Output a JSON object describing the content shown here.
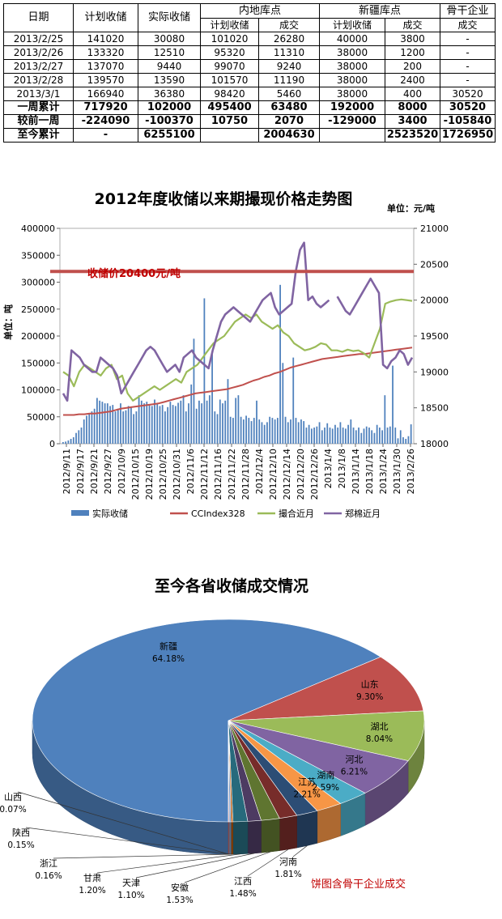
{
  "table": {
    "header": {
      "date": "日期",
      "planned": "计划收储",
      "actual": "实际收储",
      "inland": "内地库点",
      "xinjiang": "新疆库点",
      "backbone": "骨干企业",
      "sub_planned": "计划收储",
      "sub_deal": "成交",
      "sub_planned2": "计划收储",
      "sub_deal2": "成交",
      "sub_deal3": "成交"
    },
    "rows": [
      [
        "2013/2/25",
        "141020",
        "30080",
        "101020",
        "26280",
        "40000",
        "3800",
        "-"
      ],
      [
        "2013/2/26",
        "133320",
        "12510",
        "95320",
        "11310",
        "38000",
        "1200",
        "-"
      ],
      [
        "2013/2/27",
        "137070",
        "9440",
        "99070",
        "9240",
        "38000",
        "200",
        "-"
      ],
      [
        "2013/2/28",
        "139570",
        "13590",
        "101570",
        "11190",
        "38000",
        "2400",
        "-"
      ],
      [
        "2013/3/1",
        "166940",
        "36380",
        "98420",
        "5460",
        "38000",
        "400",
        "30520"
      ]
    ],
    "summary": [
      [
        "一周累计",
        "717920",
        "102000",
        "495400",
        "63480",
        "192000",
        "8000",
        "30520"
      ],
      [
        "较前一周",
        "-224090",
        "-100370",
        "10750",
        "2070",
        "-129000",
        "3400",
        "-105840"
      ],
      [
        "至今累计",
        "-",
        "6255100",
        "",
        "2004630",
        "",
        "2523520",
        "1726950"
      ]
    ]
  },
  "chart_data": [
    {
      "type": "bar+line",
      "title": "2012年度收储以来期撮现价格走势图",
      "right_unit": "单位：元/吨",
      "left_unit": "单位：吨",
      "annotation": "收储价20400元/吨",
      "reference_price": 20400,
      "y_left": {
        "min": 0,
        "max": 400000,
        "ticks": [
          "0",
          "50000",
          "100000",
          "150000",
          "200000",
          "250000",
          "300000",
          "350000",
          "400000"
        ]
      },
      "y_right": {
        "min": 18000,
        "max": 21000,
        "ticks": [
          "18000",
          "18500",
          "19000",
          "19500",
          "20000",
          "20500",
          "21000"
        ]
      },
      "x_ticks": [
        "2012/9/11",
        "2012/9/17",
        "2012/9/21",
        "2012/9/27",
        "2012/10/9",
        "2012/10/15",
        "2012/10/19",
        "2012/10/25",
        "2012/10/31",
        "2012/11/6",
        "2012/11/12",
        "2012/11/16",
        "2012/11/22",
        "2012/11/28",
        "2012/12/4",
        "2012/12/10",
        "2012/12/14",
        "2012/12/20",
        "2012/12/26",
        "2013/1/4",
        "2013/1/8",
        "2013/1/14",
        "2013/1/18",
        "2013/1/24",
        "2013/1/30",
        "2013/2/26"
      ],
      "legend": [
        "实际收储",
        "CCIndex328",
        "撮合近月",
        "郑棉近月"
      ],
      "colors": {
        "bars": "#4f81bd",
        "cc": "#c0504d",
        "match": "#9bbb59",
        "zheng": "#8064a2",
        "ref": "#c0504d"
      },
      "series": {
        "bars": [
          3000,
          4000,
          6000,
          9000,
          12000,
          20000,
          25000,
          30000,
          45000,
          52000,
          55000,
          60000,
          65000,
          85000,
          80000,
          78000,
          75000,
          75000,
          70000,
          72000,
          60000,
          65000,
          75000,
          60000,
          62000,
          70000,
          68000,
          55000,
          60000,
          90000,
          80000,
          75000,
          78000,
          72000,
          70000,
          82000,
          74000,
          70000,
          72000,
          60000,
          68000,
          78000,
          72000,
          70000,
          76000,
          80000,
          90000,
          60000,
          75000,
          110000,
          195000,
          65000,
          80000,
          75000,
          270000,
          80000,
          90000,
          170000,
          60000,
          55000,
          82000,
          75000,
          80000,
          120000,
          50000,
          48000,
          85000,
          90000,
          50000,
          45000,
          52000,
          48000,
          42000,
          48000,
          80000,
          45000,
          40000,
          35000,
          40000,
          50000,
          48000,
          45000,
          48000,
          295000,
          150000,
          50000,
          40000,
          45000,
          160000,
          48000,
          40000,
          45000,
          42000,
          30000,
          35000,
          28000,
          30000,
          32000,
          40000,
          25000,
          30000,
          38000,
          30000,
          28000,
          35000,
          30000,
          40000,
          30000,
          28000,
          35000,
          45000,
          30000,
          25000,
          30000,
          20000,
          28000,
          32000,
          30000,
          25000,
          20000,
          35000,
          30000,
          25000,
          90000,
          30000,
          32000,
          145000,
          30000,
          10000,
          25000,
          12000,
          9000,
          14000,
          36000
        ],
        "cc": [
          18400,
          18400,
          18400,
          18410,
          18410,
          18420,
          18420,
          18430,
          18440,
          18450,
          18470,
          18490,
          18500,
          18510,
          18520,
          18530,
          18540,
          18550,
          18560,
          18580,
          18600,
          18620,
          18640,
          18660,
          18680,
          18700,
          18710,
          18720,
          18730,
          18740,
          18750,
          18760,
          18780,
          18800,
          18820,
          18850,
          18880,
          18900,
          18930,
          18950,
          18980,
          19000,
          19030,
          19060,
          19080,
          19100,
          19120,
          19140,
          19160,
          19180,
          19190,
          19200,
          19210,
          19220,
          19230,
          19240,
          19250,
          19250,
          19260,
          19270,
          19280,
          19290,
          19300,
          19310,
          19320,
          19330,
          19340
        ],
        "match": [
          19000,
          18950,
          18800,
          19000,
          19100,
          19050,
          19000,
          18950,
          19050,
          19100,
          18900,
          18950,
          18700,
          18600,
          18650,
          18700,
          18750,
          18800,
          18750,
          18800,
          18850,
          18900,
          18850,
          19000,
          19050,
          19100,
          19200,
          19300,
          19400,
          19450,
          19500,
          19600,
          19700,
          19750,
          19800,
          19750,
          19800,
          19700,
          19650,
          19600,
          19650,
          19550,
          19500,
          19400,
          19350,
          19300,
          19320,
          19350,
          19400,
          19380,
          19300,
          19300,
          19280,
          19310,
          19290,
          19300,
          19260,
          19200,
          19400,
          19600,
          19950,
          19980,
          20000,
          20010,
          20000,
          19990
        ],
        "zheng": [
          18700,
          18600,
          19300,
          19250,
          19200,
          19100,
          19050,
          19000,
          19000,
          19200,
          19150,
          19100,
          19050,
          18950,
          18700,
          18800,
          18900,
          19000,
          19100,
          19200,
          19300,
          19350,
          19300,
          19200,
          19100,
          19000,
          19050,
          19100,
          19000,
          19200,
          19250,
          19300,
          19200,
          19150,
          19100,
          19050,
          19300,
          19500,
          19700,
          19800,
          19850,
          19900,
          19850,
          19800,
          19750,
          19700,
          19800,
          19900,
          20000,
          20050,
          20100,
          19900,
          19800,
          19850,
          19900,
          19950,
          20400,
          20700,
          20800,
          20000,
          20050,
          19950,
          19900,
          19950,
          20000,
          null,
          20050,
          19950,
          19850,
          19800,
          19900,
          20000,
          20100,
          20200,
          20300,
          20200,
          20100,
          19100,
          19050,
          19150,
          19200,
          19300,
          19250,
          19100,
          19200
        ]
      }
    },
    {
      "type": "pie",
      "title": "至今各省收储成交情况",
      "note": "饼图含骨干企业成交",
      "slices": [
        {
          "label": "新疆",
          "pct": 64.18,
          "text": "64.18%",
          "color": "#4f81bd"
        },
        {
          "label": "山东",
          "pct": 9.3,
          "text": "9.30%",
          "color": "#c0504d"
        },
        {
          "label": "湖北",
          "pct": 8.04,
          "text": "8.04%",
          "color": "#9bbb59"
        },
        {
          "label": "河北",
          "pct": 6.21,
          "text": "6.21%",
          "color": "#8064a2"
        },
        {
          "label": "湖南",
          "pct": 2.59,
          "text": "2.59%",
          "color": "#4bacc6"
        },
        {
          "label": "江苏",
          "pct": 2.21,
          "text": "2.21%",
          "color": "#f79646"
        },
        {
          "label": "河南",
          "pct": 1.81,
          "text": "1.81%",
          "color": "#2c4d75"
        },
        {
          "label": "江西",
          "pct": 1.48,
          "text": "1.48%",
          "color": "#772c2a"
        },
        {
          "label": "安徽",
          "pct": 1.53,
          "text": "1.53%",
          "color": "#5f7530"
        },
        {
          "label": "天津",
          "pct": 1.1,
          "text": "1.10%",
          "color": "#4d3b62"
        },
        {
          "label": "甘肃",
          "pct": 1.2,
          "text": "1.20%",
          "color": "#276a7c"
        },
        {
          "label": "浙江",
          "pct": 0.16,
          "text": "0.16%",
          "color": "#b65708"
        },
        {
          "label": "陕西",
          "pct": 0.15,
          "text": "0.15%",
          "color": "#729aca"
        },
        {
          "label": "山西",
          "pct": 0.07,
          "text": "0.07%",
          "color": "#cd7371"
        }
      ]
    }
  ]
}
